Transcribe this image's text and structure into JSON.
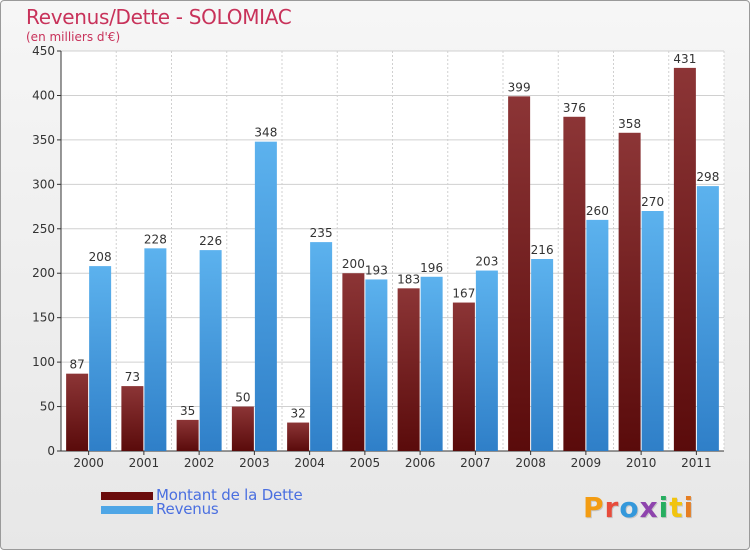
{
  "header": {
    "title": "Revenus/Dette - SOLOMIAC",
    "subtitle": "(en milliers d'€)"
  },
  "logo": {
    "text": "Proxiti",
    "colors": [
      "#f39c12",
      "#e74c3c",
      "#3498db",
      "#8e44ad",
      "#27ae60",
      "#f1c40f",
      "#e67e22"
    ]
  },
  "chart_data": {
    "type": "bar",
    "title": "Revenus/Dette - SOLOMIAC",
    "subtitle": "(en milliers d'€)",
    "xlabel": "",
    "ylabel": "",
    "categories": [
      "2000",
      "2001",
      "2002",
      "2003",
      "2004",
      "2005",
      "2006",
      "2007",
      "2008",
      "2009",
      "2010",
      "2011"
    ],
    "series": [
      {
        "name": "Montant de la Dette",
        "color": "#7b1f1f",
        "values": [
          87,
          73,
          35,
          50,
          32,
          200,
          183,
          167,
          399,
          376,
          358,
          431
        ]
      },
      {
        "name": "Revenus",
        "color": "#4fa6e6",
        "values": [
          208,
          228,
          226,
          348,
          235,
          193,
          196,
          203,
          216,
          260,
          270,
          298
        ]
      }
    ],
    "ylim": [
      0,
      450
    ],
    "yticks": [
      0,
      50,
      100,
      150,
      200,
      250,
      300,
      350,
      400,
      450
    ],
    "grid": true,
    "legend_position": "bottom-left"
  }
}
